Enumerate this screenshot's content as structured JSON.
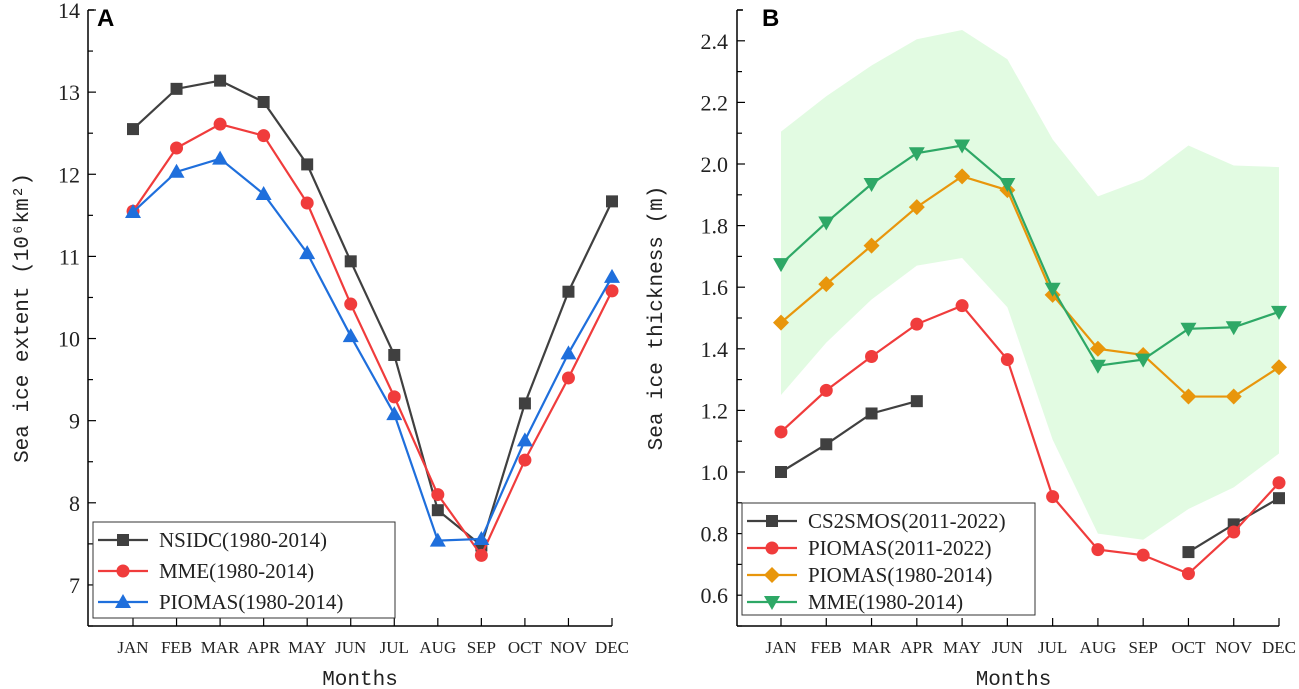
{
  "chart_data": [
    {
      "type": "line",
      "panel_label": "A",
      "xlabel": "Months",
      "ylabel": "Sea ice extent (10⁶km²)",
      "categories": [
        "JAN",
        "FEB",
        "MAR",
        "APR",
        "MAY",
        "JUN",
        "JUL",
        "AUG",
        "SEP",
        "OCT",
        "NOV",
        "DEC"
      ],
      "ylim": [
        6.5,
        14
      ],
      "yticks": [
        7,
        8,
        9,
        10,
        11,
        12,
        13,
        14
      ],
      "grid": false,
      "legend_placement": "bottom-left",
      "series": [
        {
          "name": "NSIDC(1980-2014)",
          "color": "#404040",
          "marker": "square",
          "values": [
            12.55,
            13.04,
            13.14,
            12.88,
            12.12,
            10.94,
            9.8,
            7.91,
            7.48,
            9.21,
            10.57,
            11.67
          ]
        },
        {
          "name": "MME(1980-2014)",
          "color": "#f03c3c",
          "marker": "circle",
          "values": [
            11.55,
            12.32,
            12.61,
            12.47,
            11.65,
            10.42,
            9.29,
            8.1,
            7.36,
            8.52,
            9.52,
            10.58
          ]
        },
        {
          "name": "PIOMAS(1980-2014)",
          "color": "#1f6fdc",
          "marker": "triangle-up",
          "values": [
            11.54,
            12.03,
            12.19,
            11.76,
            11.04,
            10.03,
            9.08,
            7.54,
            7.56,
            8.76,
            9.82,
            10.75
          ]
        }
      ]
    },
    {
      "type": "line",
      "panel_label": "B",
      "xlabel": "Months",
      "ylabel": "Sea ice thickness (m)",
      "categories": [
        "JAN",
        "FEB",
        "MAR",
        "APR",
        "MAY",
        "JUN",
        "JUL",
        "AUG",
        "SEP",
        "OCT",
        "NOV",
        "DEC"
      ],
      "ylim": [
        0.5,
        2.5
      ],
      "yticks": [
        "0.6",
        "0.8",
        "1.0",
        "1.2",
        "1.4",
        "1.6",
        "1.8",
        "2.0",
        "2.2",
        "2.4"
      ],
      "grid": false,
      "legend_placement": "bottom-left",
      "band": {
        "color": "#e2fbe2",
        "upper": [
          2.105,
          2.22,
          2.32,
          2.405,
          2.435,
          2.34,
          2.08,
          1.895,
          1.95,
          2.06,
          1.995,
          1.99
        ],
        "lower": [
          1.25,
          1.42,
          1.56,
          1.67,
          1.695,
          1.535,
          1.105,
          0.8,
          0.78,
          0.88,
          0.95,
          1.06
        ]
      },
      "series": [
        {
          "name": "CS2SMOS(2011-2022)",
          "color": "#404040",
          "marker": "square",
          "values": [
            1.0,
            1.09,
            1.19,
            1.23,
            null,
            null,
            null,
            null,
            null,
            0.74,
            0.83,
            0.915
          ]
        },
        {
          "name": "PIOMAS(2011-2022)",
          "color": "#f03c3c",
          "marker": "circle",
          "values": [
            1.13,
            1.265,
            1.375,
            1.48,
            1.54,
            1.365,
            0.92,
            0.748,
            0.73,
            0.67,
            0.805,
            0.965
          ]
        },
        {
          "name": "PIOMAS(1980-2014)",
          "color": "#e8960c",
          "marker": "diamond",
          "values": [
            1.485,
            1.61,
            1.735,
            1.86,
            1.96,
            1.915,
            1.575,
            1.4,
            1.38,
            1.245,
            1.245,
            1.34
          ]
        },
        {
          "name": "MME(1980-2014)",
          "color": "#2ea866",
          "marker": "triangle-down",
          "values": [
            1.675,
            1.81,
            1.935,
            2.035,
            2.06,
            1.935,
            1.595,
            1.345,
            1.365,
            1.465,
            1.47,
            1.52
          ]
        }
      ]
    }
  ]
}
